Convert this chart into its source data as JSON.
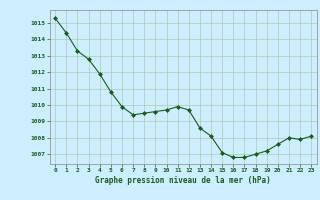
{
  "x": [
    0,
    1,
    2,
    3,
    4,
    5,
    6,
    7,
    8,
    9,
    10,
    11,
    12,
    13,
    14,
    15,
    16,
    17,
    18,
    19,
    20,
    21,
    22,
    23
  ],
  "y": [
    1015.3,
    1014.4,
    1013.3,
    1012.8,
    1011.9,
    1010.8,
    1009.9,
    1009.4,
    1009.5,
    1009.6,
    1009.7,
    1009.9,
    1009.7,
    1008.6,
    1008.1,
    1007.1,
    1006.8,
    1006.8,
    1007.0,
    1007.2,
    1007.6,
    1008.0,
    1007.9,
    1008.1
  ],
  "line_color": "#1a5c1a",
  "marker": "D",
  "marker_size": 2.0,
  "bg_color": "#cceeff",
  "grid_color": "#b0c8b0",
  "xlabel": "Graphe pression niveau de la mer (hPa)",
  "xlabel_color": "#1a5c1a",
  "tick_color": "#1a5c1a",
  "ylim_min": 1006.4,
  "ylim_max": 1015.8,
  "yticks": [
    1007,
    1008,
    1009,
    1010,
    1011,
    1012,
    1013,
    1014,
    1015
  ],
  "xticks": [
    0,
    1,
    2,
    3,
    4,
    5,
    6,
    7,
    8,
    9,
    10,
    11,
    12,
    13,
    14,
    15,
    16,
    17,
    18,
    19,
    20,
    21,
    22,
    23
  ]
}
